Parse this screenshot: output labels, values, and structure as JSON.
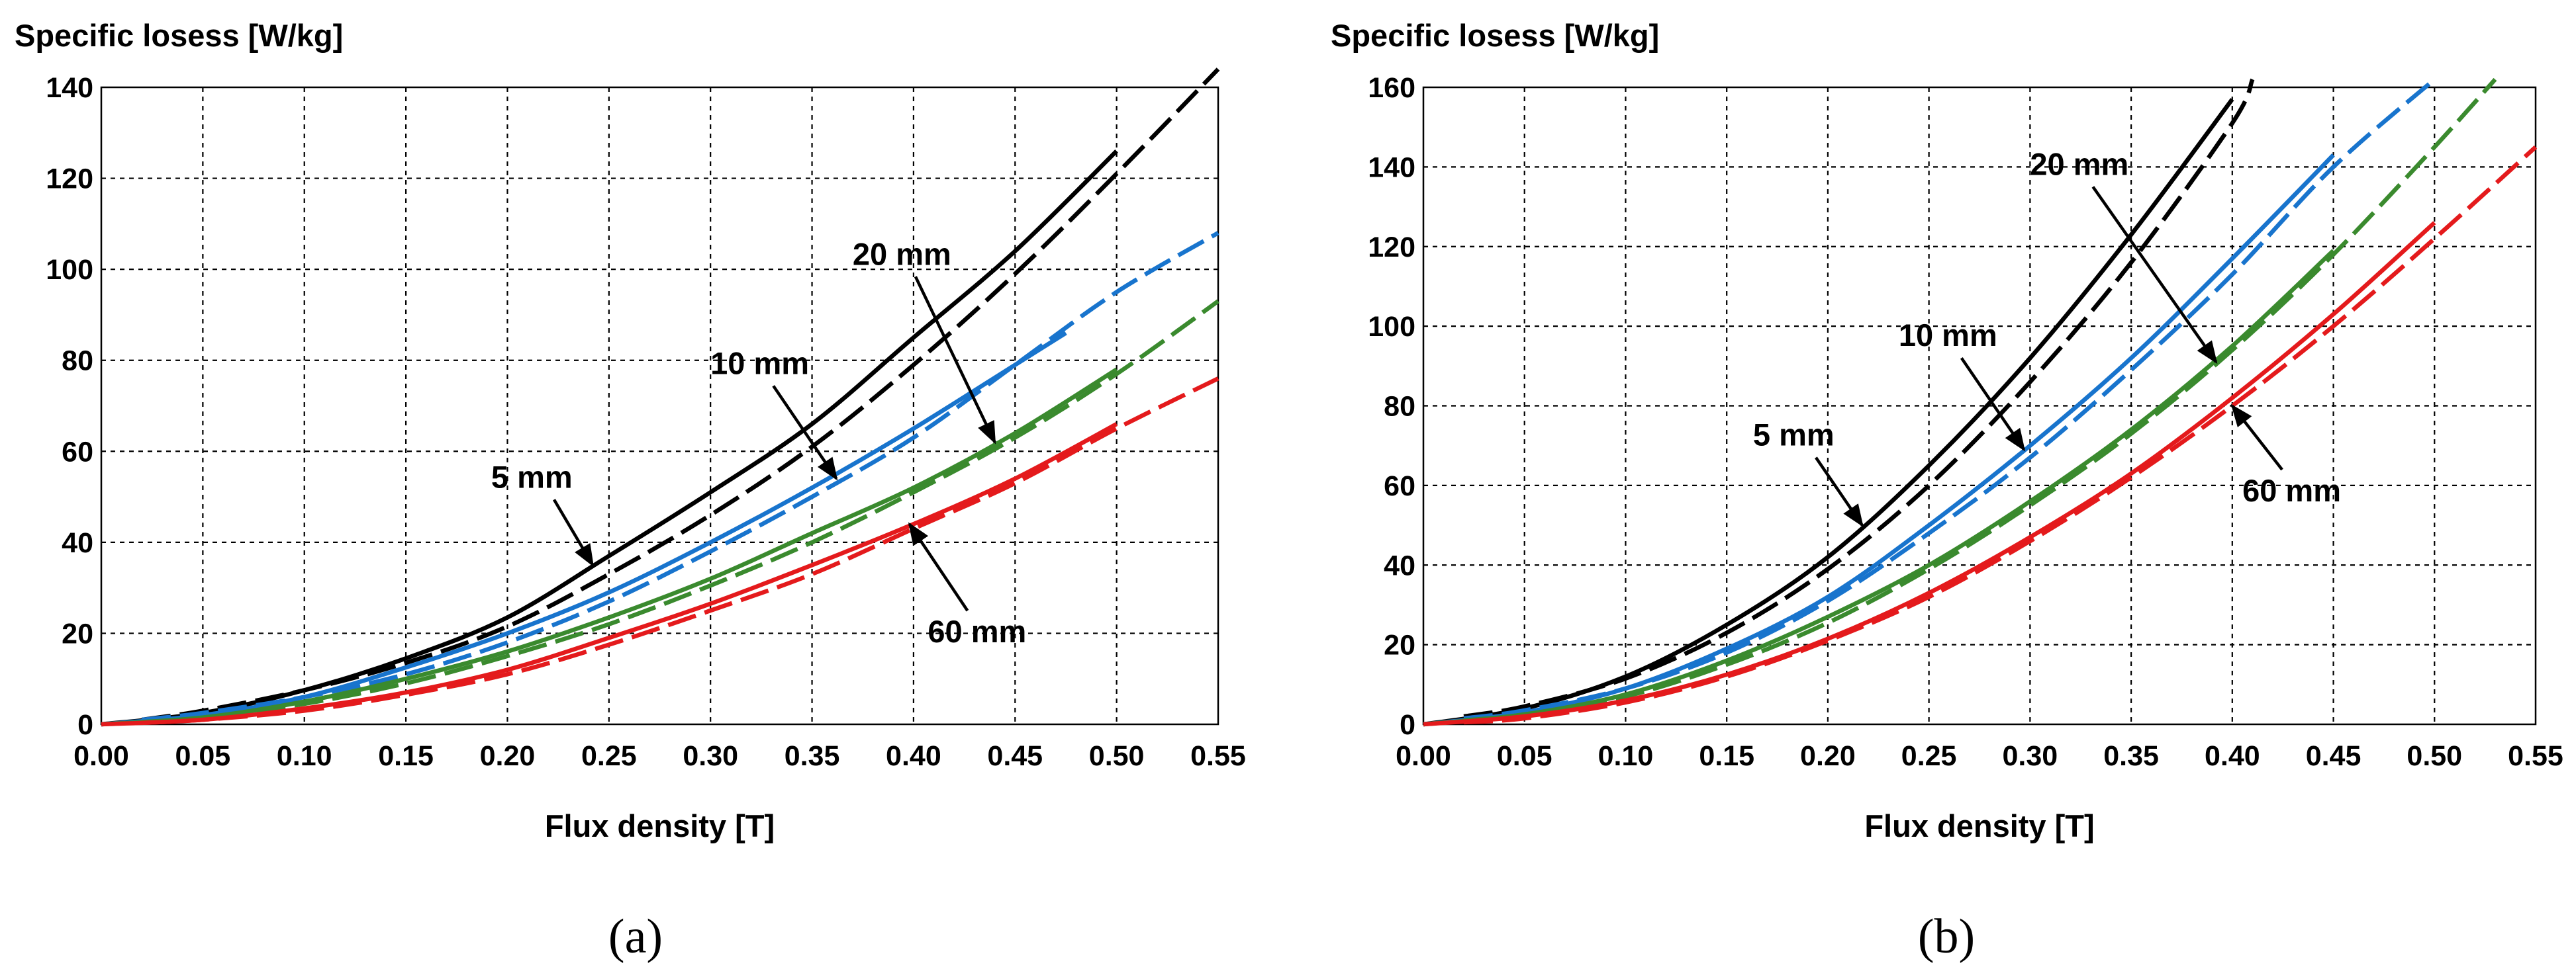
{
  "chart_data": [
    {
      "type": "line",
      "panel": "(a)",
      "ylabel": "Specific losess [W/kg]",
      "xlabel": "Flux density [T]",
      "xlim": [
        0,
        0.55
      ],
      "ylim": [
        0,
        140
      ],
      "xticks": [
        "0.00",
        "0.05",
        "0.10",
        "0.15",
        "0.20",
        "0.25",
        "0.30",
        "0.35",
        "0.40",
        "0.45",
        "0.50",
        "0.55"
      ],
      "yticks": [
        "0",
        "20",
        "40",
        "60",
        "80",
        "100",
        "120",
        "140"
      ],
      "grid": true,
      "series": [
        {
          "color": "#000000",
          "dash": false,
          "x": [
            0.0,
            0.05,
            0.1,
            0.15,
            0.2,
            0.25,
            0.3,
            0.35,
            0.4,
            0.45,
            0.5
          ],
          "y": [
            0,
            2.5,
            7.5,
            14.5,
            23.5,
            37,
            51,
            66,
            85,
            104,
            126
          ]
        },
        {
          "color": "#000000",
          "dash": true,
          "x": [
            0.02,
            0.05,
            0.1,
            0.15,
            0.2,
            0.25,
            0.3,
            0.35,
            0.4,
            0.45,
            0.5,
            0.55
          ],
          "y": [
            1,
            3,
            7.5,
            13.5,
            21.5,
            33,
            46,
            61,
            79,
            99,
            121,
            144
          ]
        },
        {
          "color": "#1874CD",
          "dash": false,
          "x": [
            0.0,
            0.05,
            0.1,
            0.15,
            0.2,
            0.25,
            0.3,
            0.35,
            0.4,
            0.45,
            0.475
          ],
          "y": [
            0,
            2,
            6,
            12.5,
            20,
            29,
            40,
            52,
            65,
            79,
            86
          ]
        },
        {
          "color": "#1874CD",
          "dash": true,
          "x": [
            0.02,
            0.05,
            0.1,
            0.15,
            0.2,
            0.25,
            0.3,
            0.35,
            0.4,
            0.45,
            0.5,
            0.55
          ],
          "y": [
            1,
            2.5,
            6,
            11,
            18,
            27,
            38,
            50,
            63,
            79,
            95,
            108
          ]
        },
        {
          "color": "#3A8A2E",
          "dash": false,
          "x": [
            0.0,
            0.05,
            0.1,
            0.15,
            0.2,
            0.25,
            0.3,
            0.35,
            0.4,
            0.45,
            0.5
          ],
          "y": [
            0,
            1.5,
            5,
            10,
            16,
            23.5,
            32,
            42,
            52,
            64,
            78
          ]
        },
        {
          "color": "#3A8A2E",
          "dash": true,
          "x": [
            0.02,
            0.05,
            0.1,
            0.15,
            0.2,
            0.25,
            0.3,
            0.35,
            0.4,
            0.45,
            0.5,
            0.55
          ],
          "y": [
            0.5,
            1.5,
            4.5,
            9,
            15,
            22,
            30.5,
            40,
            51,
            63,
            77,
            93
          ]
        },
        {
          "color": "#E41A1C",
          "dash": false,
          "x": [
            0.0,
            0.05,
            0.1,
            0.15,
            0.2,
            0.25,
            0.3,
            0.35,
            0.4,
            0.45,
            0.5
          ],
          "y": [
            0,
            1,
            3.5,
            7,
            12,
            19,
            26.5,
            35,
            44,
            54,
            66
          ]
        },
        {
          "color": "#E41A1C",
          "dash": true,
          "x": [
            0.02,
            0.05,
            0.1,
            0.15,
            0.2,
            0.25,
            0.3,
            0.35,
            0.4,
            0.45,
            0.5,
            0.55
          ],
          "y": [
            0.3,
            1,
            3,
            6.5,
            11,
            17.5,
            25,
            33,
            43,
            53,
            65,
            76
          ]
        }
      ],
      "annotations": [
        {
          "text": "5 mm",
          "x": 0.192,
          "y": 52,
          "ax": 0.242,
          "ay": 35
        },
        {
          "text": "10 mm",
          "x": 0.3,
          "y": 77,
          "ax": 0.362,
          "ay": 54
        },
        {
          "text": "20 mm",
          "x": 0.37,
          "y": 101,
          "ax": 0.44,
          "ay": 62
        },
        {
          "text": "60 mm",
          "x": 0.407,
          "y": 18,
          "ax": 0.398,
          "ay": 44
        }
      ]
    },
    {
      "type": "line",
      "panel": "(b)",
      "ylabel": "Specific losess [W/kg]",
      "xlabel": "Flux density [T]",
      "xlim": [
        0,
        0.55
      ],
      "ylim": [
        0,
        160
      ],
      "xticks": [
        "0.00",
        "0.05",
        "0.10",
        "0.15",
        "0.20",
        "0.25",
        "0.30",
        "0.35",
        "0.40",
        "0.45",
        "0.50",
        "0.55"
      ],
      "yticks": [
        "0",
        "20",
        "40",
        "60",
        "80",
        "100",
        "120",
        "140",
        "160"
      ],
      "grid": true,
      "series": [
        {
          "color": "#000000",
          "dash": false,
          "x": [
            0.0,
            0.05,
            0.1,
            0.15,
            0.2,
            0.25,
            0.3,
            0.35,
            0.4
          ],
          "y": [
            0,
            4,
            12,
            25,
            42,
            65,
            92,
            123,
            157
          ]
        },
        {
          "color": "#000000",
          "dash": true,
          "x": [
            0.02,
            0.05,
            0.1,
            0.15,
            0.2,
            0.25,
            0.3,
            0.35,
            0.4,
            0.41
          ],
          "y": [
            2,
            4.5,
            11.5,
            23,
            39,
            60,
            86,
            116,
            151,
            162
          ]
        },
        {
          "color": "#1874CD",
          "dash": false,
          "x": [
            0.0,
            0.05,
            0.1,
            0.15,
            0.2,
            0.25,
            0.3,
            0.35,
            0.4,
            0.45
          ],
          "y": [
            0,
            3,
            9,
            19,
            32,
            50,
            70,
            92,
            117,
            143
          ]
        },
        {
          "color": "#1874CD",
          "dash": true,
          "x": [
            0.02,
            0.05,
            0.1,
            0.15,
            0.2,
            0.25,
            0.3,
            0.35,
            0.4,
            0.45,
            0.5
          ],
          "y": [
            1.5,
            3.5,
            9,
            18,
            31,
            48,
            67,
            89,
            113,
            140,
            162
          ]
        },
        {
          "color": "#3A8A2E",
          "dash": false,
          "x": [
            0.0,
            0.05,
            0.1,
            0.15,
            0.2,
            0.25,
            0.3,
            0.35,
            0.4,
            0.45
          ],
          "y": [
            0,
            2.5,
            7.5,
            16,
            27,
            40,
            56,
            74,
            95,
            119
          ]
        },
        {
          "color": "#3A8A2E",
          "dash": true,
          "x": [
            0.02,
            0.05,
            0.1,
            0.15,
            0.2,
            0.25,
            0.3,
            0.35,
            0.4,
            0.45,
            0.5,
            0.53
          ],
          "y": [
            1,
            2.5,
            7,
            15,
            25.5,
            39,
            55,
            73,
            94,
            118,
            145,
            162
          ]
        },
        {
          "color": "#E41A1C",
          "dash": false,
          "x": [
            0.0,
            0.05,
            0.1,
            0.15,
            0.2,
            0.25,
            0.3,
            0.35,
            0.4,
            0.45,
            0.5
          ],
          "y": [
            0,
            2,
            6,
            12.5,
            21.5,
            33,
            47,
            63,
            82,
            103,
            126
          ]
        },
        {
          "color": "#E41A1C",
          "dash": true,
          "x": [
            0.02,
            0.05,
            0.1,
            0.15,
            0.2,
            0.25,
            0.3,
            0.35,
            0.4,
            0.45,
            0.5,
            0.55
          ],
          "y": [
            0.5,
            1.5,
            5.5,
            12,
            21,
            32,
            46,
            62,
            80,
            100,
            122,
            145
          ]
        }
      ],
      "annotations": [
        {
          "text": "5 mm",
          "x": 0.163,
          "y": 70,
          "ax": 0.217,
          "ay": 50
        },
        {
          "text": "10 mm",
          "x": 0.235,
          "y": 95,
          "ax": 0.297,
          "ay": 69
        },
        {
          "text": "20 mm",
          "x": 0.3,
          "y": 138,
          "ax": 0.392,
          "ay": 91
        },
        {
          "text": "60 mm",
          "x": 0.405,
          "y": 56,
          "ax": 0.4,
          "ay": 80
        }
      ]
    }
  ]
}
